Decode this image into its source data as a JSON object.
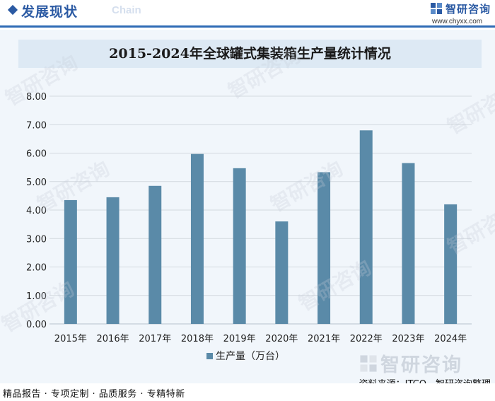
{
  "header": {
    "section_title": "发展现状",
    "section_subtitle": "Chain",
    "brand_name": "智研咨询",
    "brand_url": "www.chyxx.com"
  },
  "chart_data": {
    "type": "bar",
    "title": "2015-2024年全球罐式集装箱生产量统计情况",
    "categories": [
      "2015年",
      "2016年",
      "2017年",
      "2018年",
      "2019年",
      "2020年",
      "2021年",
      "2022年",
      "2023年",
      "2024年"
    ],
    "series": [
      {
        "name": "生产量（万台）",
        "values": [
          4.35,
          4.45,
          4.85,
          5.97,
          5.47,
          3.6,
          5.33,
          6.8,
          5.65,
          4.2
        ]
      }
    ],
    "yticks": [
      "0.00",
      "1.00",
      "2.00",
      "3.00",
      "4.00",
      "5.00",
      "6.00",
      "7.00",
      "8.00"
    ],
    "ylim": [
      0,
      8
    ],
    "grid": true,
    "legend_position": "bottom",
    "bar_color": "#5a8aa8"
  },
  "source": "资料来源：ITCO、智研咨询整理",
  "watermark_text": "智研咨询",
  "footer": {
    "text": "精品报告 · 专项定制 · 品质服务 · 专精特新"
  }
}
